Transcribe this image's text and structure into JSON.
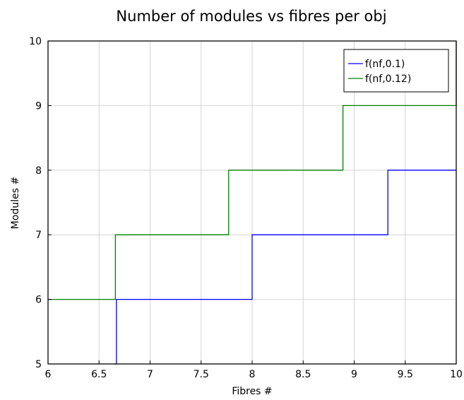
{
  "chart_data": {
    "type": "line",
    "title": "Number of modules vs fibres per obj",
    "xlabel": "Fibres #",
    "ylabel": "Modules #",
    "xlim": [
      6,
      10
    ],
    "ylim": [
      5,
      10
    ],
    "xticks": [
      "6",
      "6.5",
      "7",
      "7.5",
      "8",
      "8.5",
      "9",
      "9.5",
      "10"
    ],
    "yticks": [
      "5",
      "6",
      "7",
      "8",
      "9",
      "10"
    ],
    "grid": true,
    "legend_position": "top-right",
    "series": [
      {
        "name": "f(nf,0.1)",
        "color": "#0000ff",
        "step": "post",
        "x": [
          6.65,
          6.67,
          7.98,
          8.0,
          9.31,
          9.33,
          10.0
        ],
        "y": [
          5,
          6,
          6,
          7,
          7,
          8,
          8
        ]
      },
      {
        "name": "f(nf,0.12)",
        "color": "#008000",
        "step": "post",
        "x": [
          6.0,
          6.64,
          6.66,
          7.75,
          7.77,
          8.87,
          8.89,
          9.98,
          10.0
        ],
        "y": [
          6,
          6,
          7,
          7,
          8,
          8,
          9,
          9,
          10
        ]
      }
    ]
  }
}
